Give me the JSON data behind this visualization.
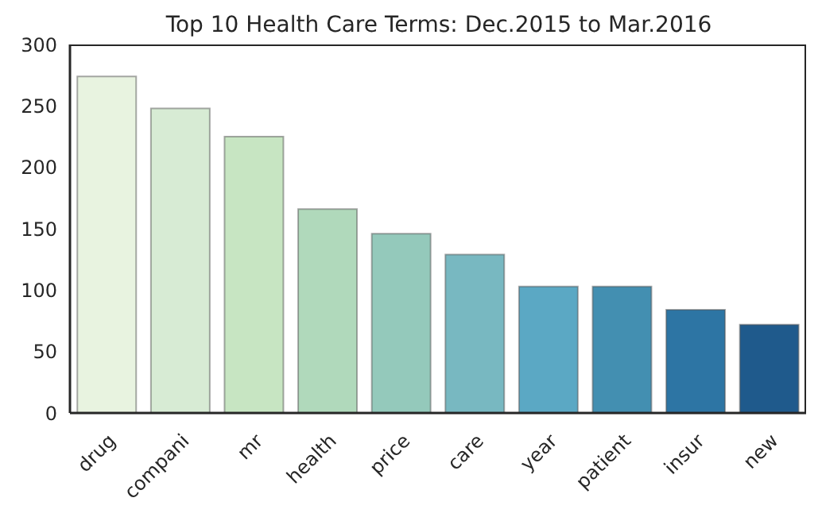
{
  "chart_data": {
    "type": "bar",
    "title": "Top 10 Health Care Terms: Dec.2015 to Mar.2016",
    "categories": [
      "drug",
      "compani",
      "mr",
      "health",
      "price",
      "care",
      "year",
      "patient",
      "insur",
      "new"
    ],
    "values": [
      274,
      248,
      225,
      166,
      146,
      129,
      103,
      103,
      84,
      72
    ],
    "colors": [
      "#e8f3e0",
      "#d7ebd4",
      "#c7e5c2",
      "#b0d9bb",
      "#94c9bb",
      "#78b8c1",
      "#5ba8c4",
      "#438fb1",
      "#2d75a4",
      "#1f5a8c"
    ],
    "ylim": [
      0,
      300
    ],
    "yticks": [
      0,
      50,
      100,
      150,
      200,
      250,
      300
    ],
    "grid": false
  }
}
